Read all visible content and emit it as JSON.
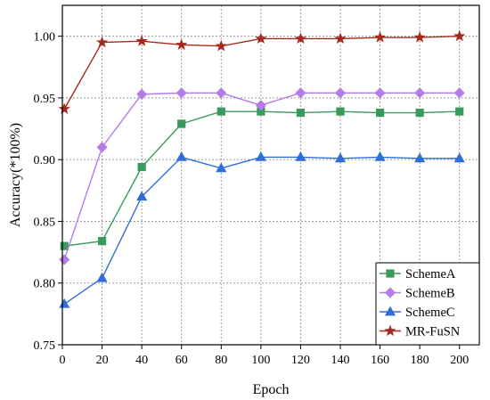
{
  "chart_data": {
    "type": "line",
    "title": "",
    "xlabel": "Epoch",
    "ylabel": "Accuracy(*100%)",
    "x": [
      1,
      20,
      40,
      60,
      80,
      100,
      120,
      140,
      160,
      180,
      200
    ],
    "xticks": [
      0,
      20,
      40,
      60,
      80,
      100,
      120,
      140,
      160,
      180,
      200
    ],
    "xtick_labels": [
      "0",
      "20",
      "40",
      "60",
      "80",
      "100",
      "120",
      "140",
      "160",
      "180",
      "200"
    ],
    "yticks": [
      0.75,
      0.8,
      0.85,
      0.9,
      0.95,
      1.0
    ],
    "ytick_labels": [
      "0.75",
      "0.80",
      "0.85",
      "0.90",
      "0.95",
      "1.00"
    ],
    "xlim": [
      0,
      210
    ],
    "ylim": [
      0.75,
      1.025
    ],
    "grid": true,
    "legend_position": "bottom-right",
    "series": [
      {
        "name": "SchemeA",
        "color": "#3a9a5c",
        "marker": "square",
        "values": [
          0.83,
          0.834,
          0.894,
          0.929,
          0.939,
          0.939,
          0.938,
          0.939,
          0.938,
          0.938,
          0.939
        ]
      },
      {
        "name": "SchemeB",
        "color": "#b57be6",
        "marker": "diamond",
        "values": [
          0.819,
          0.91,
          0.953,
          0.954,
          0.954,
          0.944,
          0.954,
          0.954,
          0.954,
          0.954,
          0.954
        ]
      },
      {
        "name": "SchemeC",
        "color": "#2f6fd6",
        "marker": "triangle",
        "values": [
          0.783,
          0.804,
          0.87,
          0.902,
          0.893,
          0.902,
          0.902,
          0.901,
          0.902,
          0.901,
          0.901
        ]
      },
      {
        "name": "MR-FuSN",
        "color": "#a52a1e",
        "marker": "star",
        "values": [
          0.941,
          0.995,
          0.996,
          0.993,
          0.992,
          0.998,
          0.998,
          0.998,
          0.999,
          0.999,
          1.0
        ]
      }
    ]
  }
}
